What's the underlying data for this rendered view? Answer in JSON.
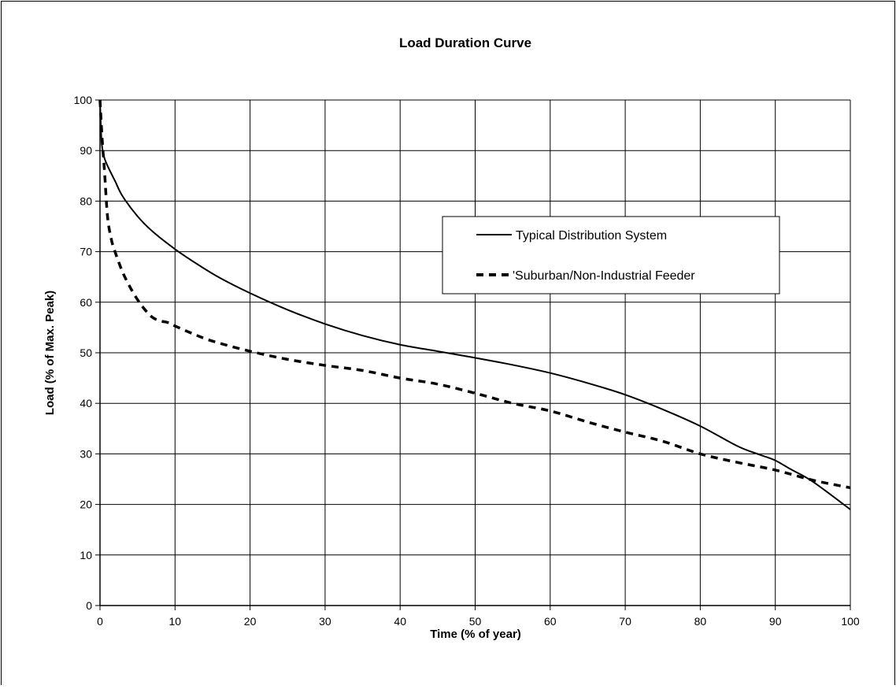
{
  "chart_data": {
    "type": "line",
    "title": "Load Duration Curve",
    "xlabel": "Time (% of year)",
    "ylabel": "Load (% of Max. Peak)",
    "xlim": [
      0,
      100
    ],
    "ylim": [
      0,
      100
    ],
    "xticks": [
      "0",
      "10",
      "20",
      "30",
      "40",
      "50",
      "60",
      "70",
      "80",
      "90",
      "100"
    ],
    "yticks": [
      "0",
      "10",
      "20",
      "30",
      "40",
      "50",
      "60",
      "70",
      "80",
      "90",
      "100"
    ],
    "grid": true,
    "legend_position": "top-right",
    "series": [
      {
        "name": "Typical Distribution System",
        "style": "solid",
        "color": "#000000",
        "x": [
          0,
          0.2,
          0.5,
          1,
          2,
          3,
          5,
          7,
          10,
          13,
          16,
          20,
          25,
          30,
          35,
          40,
          45,
          50,
          55,
          60,
          65,
          70,
          75,
          80,
          85,
          88,
          90,
          92,
          95,
          100
        ],
        "y": [
          100,
          92,
          89,
          87,
          84,
          81,
          77,
          74,
          70.5,
          67.5,
          64.8,
          61.8,
          58.5,
          55.7,
          53.4,
          51.6,
          50.3,
          49,
          47.6,
          46,
          44,
          41.7,
          38.8,
          35.5,
          31.5,
          29.8,
          28.7,
          27,
          24.5,
          19
        ]
      },
      {
        "name": "Suburban/Non-Industrial Feeder",
        "style": "dashed",
        "color": "#000000",
        "x": [
          0,
          0.3,
          0.6,
          1,
          1.5,
          2,
          3,
          4,
          5,
          6,
          7,
          8,
          9,
          10,
          12,
          15,
          20,
          25,
          30,
          35,
          40,
          45,
          50,
          55,
          60,
          65,
          70,
          75,
          80,
          85,
          90,
          95,
          100
        ],
        "y": [
          100,
          92,
          86,
          77,
          72.5,
          70,
          66,
          63,
          60.5,
          58.5,
          57,
          56.3,
          56,
          55.3,
          54,
          52.3,
          50.3,
          48.7,
          47.5,
          46.5,
          45,
          43.8,
          42,
          40,
          38.5,
          36.3,
          34.3,
          32.5,
          30,
          28.3,
          26.8,
          24.8,
          23.3
        ]
      }
    ],
    "legend": [
      "Typical Distribution System",
      "'Suburban/Non-Industrial Feeder"
    ]
  }
}
